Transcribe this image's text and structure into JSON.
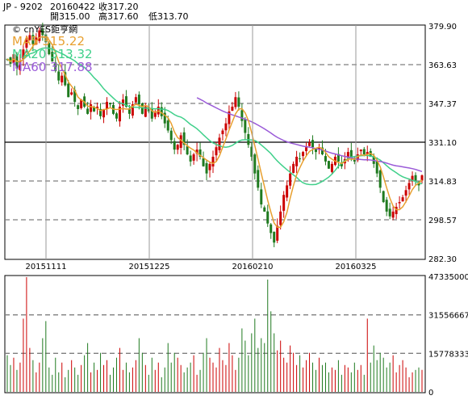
{
  "header": {
    "ticker": "JP - 9202",
    "date": "20160422",
    "close_label": "收317.20",
    "open_label": "開315.00",
    "high_label": "高317.60",
    "low_label": "低313.70"
  },
  "watermark": "© cnYES鉅亨網",
  "legend": {
    "ma5": "MA5 315.22",
    "ma20": "MA20 313.32",
    "ma60": "MA60 317.88"
  },
  "colors": {
    "up": "#cc0000",
    "down": "#1f7a1f",
    "ma5": "#e8a030",
    "ma20": "#3fd08a",
    "ma60": "#9a5ad8",
    "grid": "#7f7f7f",
    "frame": "#000000"
  },
  "chart_data": [
    {
      "type": "candlestick",
      "title": "",
      "x_tick_labels": [
        "20151111",
        "20151225",
        "20160210",
        "20160325"
      ],
      "y_tick_labels": [
        "379.90",
        "363.63",
        "347.37",
        "331.10",
        "314.83",
        "298.57",
        "282.30"
      ],
      "ylim": [
        282.3,
        379.9
      ],
      "last": {
        "date": "20160422",
        "open": 315.0,
        "high": 317.6,
        "low": 313.7,
        "close": 317.2
      },
      "ma_last": {
        "MA5": 315.22,
        "MA20": 313.32,
        "MA60": 317.88
      },
      "closes": [
        366,
        364,
        368,
        362,
        365,
        370,
        374,
        376,
        372,
        375,
        378,
        376,
        373,
        368,
        365,
        361,
        357,
        359,
        355,
        350,
        352,
        348,
        345,
        349,
        346,
        343,
        347,
        344,
        346,
        342,
        345,
        348,
        347,
        343,
        341,
        346,
        349,
        346,
        343,
        347,
        350,
        347,
        343,
        346,
        344,
        341,
        344,
        346,
        342,
        339,
        336,
        332,
        328,
        330,
        334,
        330,
        326,
        323,
        326,
        328,
        325,
        321,
        318,
        322,
        325,
        329,
        333,
        336,
        339,
        344,
        346,
        350,
        346,
        340,
        335,
        330,
        325,
        318,
        312,
        305,
        302,
        297,
        293,
        289,
        296,
        302,
        309,
        313,
        318,
        322,
        325,
        324,
        327,
        329,
        331,
        329,
        327,
        329,
        326,
        323,
        320,
        322,
        325,
        323,
        321,
        324,
        327,
        325,
        323,
        326,
        328,
        326,
        327,
        325,
        322,
        318,
        312,
        306,
        302,
        300,
        302,
        304,
        306,
        308,
        311,
        314,
        317,
        315,
        313,
        317.2
      ]
    },
    {
      "type": "bar",
      "title": "",
      "y_tick_labels": [
        "47335000",
        "31556667",
        "15778333",
        "0"
      ],
      "ylim": [
        0,
        47335000
      ],
      "volumes": [
        15000000,
        11000000,
        14000000,
        9000000,
        12000000,
        30000000,
        47000000,
        18000000,
        13000000,
        8000000,
        12000000,
        22000000,
        29000000,
        10000000,
        7000000,
        14000000,
        8000000,
        12000000,
        6000000,
        9000000,
        13000000,
        10000000,
        7000000,
        11000000,
        15000000,
        20000000,
        8000000,
        12000000,
        9000000,
        16000000,
        11000000,
        13000000,
        7000000,
        10000000,
        14000000,
        18000000,
        9000000,
        12000000,
        8000000,
        10000000,
        13000000,
        22000000,
        16000000,
        11000000,
        7000000,
        14000000,
        9000000,
        12000000,
        6000000,
        10000000,
        20000000,
        12000000,
        16000000,
        14000000,
        11000000,
        8000000,
        10000000,
        12000000,
        15000000,
        7000000,
        9000000,
        16000000,
        22000000,
        14000000,
        12000000,
        10000000,
        18000000,
        13000000,
        11000000,
        20000000,
        15000000,
        9000000,
        14000000,
        26000000,
        21000000,
        15000000,
        24000000,
        30000000,
        18000000,
        22000000,
        20000000,
        46000000,
        33000000,
        24000000,
        17000000,
        21000000,
        14000000,
        12000000,
        19000000,
        16000000,
        11000000,
        15000000,
        10000000,
        13000000,
        16000000,
        12000000,
        9000000,
        14000000,
        11000000,
        12000000,
        8000000,
        10000000,
        9000000,
        13000000,
        7000000,
        11000000,
        10000000,
        8000000,
        12000000,
        9000000,
        11000000,
        7000000,
        30000000,
        12000000,
        19000000,
        13000000,
        16000000,
        14000000,
        10000000,
        12000000,
        15000000,
        8000000,
        11000000,
        13000000,
        10000000,
        6000000,
        8000000,
        9000000,
        10000000,
        9000000
      ]
    }
  ]
}
